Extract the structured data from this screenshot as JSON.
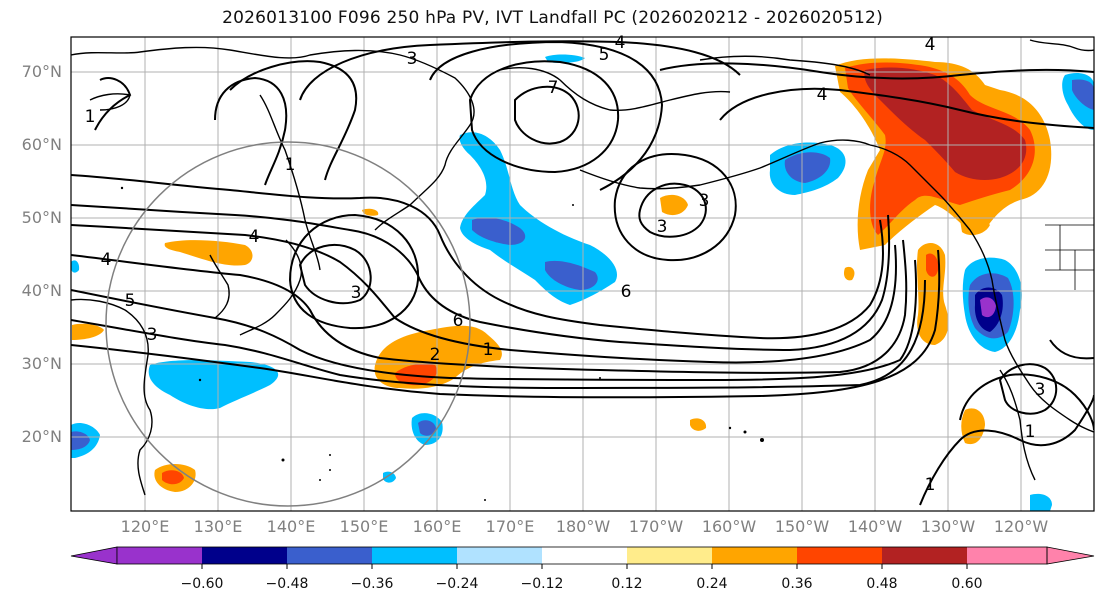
{
  "title": "2026013100 F096 250 hPa PV, IVT Landfall PC (2026020212 - 2026020512)",
  "lat_labels": [
    "70°N",
    "60°N",
    "50°N",
    "40°N",
    "30°N",
    "20°N"
  ],
  "lon_labels": [
    "120°E",
    "130°E",
    "140°E",
    "150°E",
    "160°E",
    "170°E",
    "180°W",
    "170°W",
    "160°W",
    "150°W",
    "140°W",
    "130°W",
    "120°W"
  ],
  "pv_contour_labels": [
    "4",
    "5",
    "3",
    "7",
    "4",
    "4",
    "1",
    "4",
    "4",
    "3",
    "5",
    "3",
    "6",
    "6",
    "3",
    "3",
    "2",
    "1",
    "1",
    "1",
    "3",
    "1"
  ],
  "colorbar": {
    "ticks": [
      "−0.60",
      "−0.48",
      "−0.36",
      "−0.24",
      "−0.12",
      "0.12",
      "0.24",
      "0.36",
      "0.48",
      "0.60"
    ],
    "colors": [
      "#9932cc",
      "#00008b",
      "#3a5fcd",
      "#00bfff",
      "#b0e2ff",
      "#ffffff",
      "#ffec8b",
      "#ffa500",
      "#ff4500",
      "#b22222",
      "#ff82ab"
    ]
  },
  "shading_colors": {
    "orange": "#ffa500",
    "red": "#ff4500",
    "darkred": "#b22222",
    "yellow": "#ffec8b",
    "cyan": "#00bfff",
    "lightblue": "#b0e2ff",
    "blue": "#3a5fcd",
    "navy": "#00008b",
    "purple": "#9932cc"
  }
}
